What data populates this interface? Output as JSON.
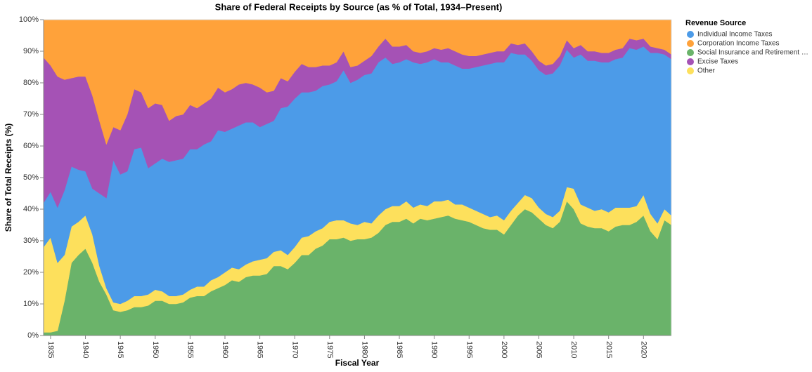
{
  "chart_data": {
    "type": "stacked_area",
    "title": "Share of Federal Receipts by Source (as % of Total, 1934–Present)",
    "x_label": "Fiscal Year",
    "y_label": "Share of Total Receipts (%)",
    "legend_title": "Revenue Source",
    "x": [
      1934,
      1935,
      1936,
      1937,
      1938,
      1939,
      1940,
      1941,
      1942,
      1943,
      1944,
      1945,
      1946,
      1947,
      1948,
      1949,
      1950,
      1951,
      1952,
      1953,
      1954,
      1955,
      1956,
      1957,
      1958,
      1959,
      1960,
      1961,
      1962,
      1963,
      1964,
      1965,
      1966,
      1967,
      1968,
      1969,
      1970,
      1971,
      1972,
      1973,
      1974,
      1975,
      1976,
      1977,
      1978,
      1979,
      1980,
      1981,
      1982,
      1983,
      1984,
      1985,
      1986,
      1987,
      1988,
      1989,
      1990,
      1991,
      1992,
      1993,
      1994,
      1995,
      1996,
      1997,
      1998,
      1999,
      2000,
      2001,
      2002,
      2003,
      2004,
      2005,
      2006,
      2007,
      2008,
      2009,
      2010,
      2011,
      2012,
      2013,
      2014,
      2015,
      2016,
      2017,
      2018,
      2019,
      2020,
      2021,
      2022,
      2023,
      2024
    ],
    "xlim": [
      1934,
      2024
    ],
    "xticks": [
      1935,
      1940,
      1945,
      1950,
      1955,
      1960,
      1965,
      1970,
      1975,
      1980,
      1985,
      1990,
      1995,
      2000,
      2005,
      2010,
      2015,
      2020
    ],
    "ylim": [
      0,
      100
    ],
    "yticks": [
      {
        "value": 0,
        "label": "0%"
      },
      {
        "value": 10,
        "label": "10%"
      },
      {
        "value": 20,
        "label": "20%"
      },
      {
        "value": 30,
        "label": "30%"
      },
      {
        "value": 40,
        "label": "40%"
      },
      {
        "value": 50,
        "label": "50%"
      },
      {
        "value": 60,
        "label": "60%"
      },
      {
        "value": 70,
        "label": "70%"
      },
      {
        "value": 80,
        "label": "80%"
      },
      {
        "value": 90,
        "label": "90%"
      },
      {
        "value": 100,
        "label": "100%"
      }
    ],
    "grid": true,
    "legend_position": "right",
    "stack_order": [
      2,
      4,
      0,
      3,
      1
    ],
    "series": [
      {
        "name": "Individual Income Taxes",
        "color": "#4c9be8",
        "values": [
          14,
          14.5,
          17.5,
          20.5,
          19,
          16.5,
          14,
          14.5,
          23,
          28.5,
          45,
          41,
          41,
          46.5,
          47,
          40,
          40,
          42,
          42.5,
          43,
          43,
          44.5,
          43.5,
          45,
          44,
          46.5,
          44.5,
          44,
          45.5,
          45,
          44,
          42,
          42.5,
          41.5,
          45,
          47,
          47,
          46,
          45.5,
          44.5,
          45,
          43.5,
          44,
          47.5,
          44.5,
          46,
          46.5,
          47.5,
          48.5,
          48,
          45,
          45.5,
          45,
          46,
          44.5,
          45.5,
          45,
          44,
          43.5,
          44,
          43,
          44,
          45.5,
          47,
          48.5,
          48.5,
          50,
          50,
          47,
          44.5,
          43.5,
          43.5,
          44,
          45.5,
          46,
          43.5,
          41.5,
          47.5,
          46.5,
          47.5,
          46.5,
          47.5,
          47,
          47.5,
          50.5,
          49.5,
          47,
          51,
          54,
          49,
          49.5
        ]
      },
      {
        "name": "Corporation Income Taxes",
        "color": "#ffa23a",
        "values": [
          12,
          14.5,
          18,
          19,
          18.5,
          18,
          18,
          24,
          32,
          39.5,
          34,
          35,
          30,
          22,
          23,
          28,
          26.5,
          27,
          32,
          30.5,
          30,
          27,
          28,
          26.5,
          25,
          21.5,
          23,
          22,
          20.5,
          20,
          20.5,
          21.5,
          23,
          22.5,
          18.5,
          19.5,
          16.5,
          14,
          15,
          15,
          14.5,
          14.5,
          13.5,
          10,
          15,
          14.5,
          13,
          11.5,
          8.5,
          6,
          8.5,
          8.5,
          8,
          10,
          10.5,
          10,
          9,
          9.5,
          9,
          10,
          11,
          11.5,
          11.5,
          11,
          10.5,
          10,
          10,
          7.5,
          8,
          7.5,
          10,
          13,
          14.5,
          14,
          11.5,
          6.5,
          9,
          8,
          10,
          10,
          10.5,
          10.5,
          9.5,
          9,
          6,
          6.5,
          6,
          8.5,
          9,
          9.5,
          11
        ]
      },
      {
        "name": "Social Insurance and Retirement …",
        "color": "#6ab36a",
        "values": [
          1,
          1,
          1.5,
          11,
          23,
          25.5,
          27.5,
          23,
          17,
          13,
          8,
          7.5,
          8,
          9,
          9,
          9.5,
          11,
          11,
          10,
          10,
          10.5,
          12,
          12.5,
          12.5,
          14,
          15,
          16,
          17.5,
          17,
          18.5,
          19,
          19,
          19.5,
          22,
          22,
          21,
          23,
          25.5,
          25.5,
          27.5,
          28.5,
          30.5,
          30.5,
          31,
          30,
          30.5,
          30.5,
          31,
          32.5,
          35,
          36,
          36,
          37,
          35.5,
          37,
          36.5,
          37,
          37.5,
          38,
          37,
          36.5,
          36,
          35,
          34,
          33.5,
          33.5,
          32,
          35,
          38,
          40,
          39,
          37,
          35,
          34,
          36,
          42.5,
          40,
          35.5,
          34.5,
          34,
          34,
          33,
          34.5,
          35,
          35,
          36,
          38,
          33,
          30.5,
          36.5,
          35
        ]
      },
      {
        "name": "Excise Taxes",
        "color": "#a552b5",
        "values": [
          46,
          40,
          41.5,
          35,
          28,
          29.5,
          30,
          29.5,
          23,
          17,
          10.5,
          14,
          18,
          19,
          17.5,
          19,
          19,
          17,
          13,
          14,
          14,
          14,
          13,
          13,
          13.5,
          13.5,
          12.5,
          12.5,
          13,
          12.5,
          12,
          12.5,
          10,
          9.5,
          9.5,
          8,
          8.5,
          9,
          8,
          7.5,
          6.5,
          6,
          6,
          6,
          5,
          4.5,
          4.5,
          5.5,
          5,
          6,
          5.5,
          5,
          4.5,
          3.5,
          3.5,
          3.5,
          3.5,
          4,
          4.5,
          4.5,
          4.5,
          4,
          3.5,
          3.5,
          3.5,
          3.5,
          3.5,
          3,
          3,
          3.5,
          3,
          3,
          3,
          3,
          3,
          3,
          3,
          3,
          3,
          3,
          3,
          3,
          3,
          3,
          3,
          3,
          2.5,
          2,
          1.5,
          1.5,
          1.5
        ]
      },
      {
        "name": "Other",
        "color": "#fde05c",
        "values": [
          27,
          30,
          21.5,
          14.5,
          11.5,
          10.5,
          10.5,
          9,
          5,
          2,
          2.5,
          2.5,
          3,
          3.5,
          3.5,
          3.5,
          3.5,
          3,
          2.5,
          2.5,
          2.5,
          2.5,
          3,
          3,
          3.5,
          3.5,
          4,
          4,
          4,
          4,
          4.5,
          5,
          5,
          4.5,
          5,
          4.5,
          5,
          5.5,
          6,
          5.5,
          5.5,
          5.5,
          6,
          5.5,
          5.5,
          4.5,
          5.5,
          4.5,
          5.5,
          5,
          5,
          5,
          5.5,
          5,
          4.5,
          4.5,
          5.5,
          5,
          5,
          4.5,
          5,
          4.5,
          4.5,
          4.5,
          4,
          4.5,
          4.5,
          4.5,
          4,
          4.5,
          4.5,
          3.5,
          3.5,
          3.5,
          3.5,
          4.5,
          6.5,
          6,
          6,
          5.5,
          6,
          6,
          6,
          5.5,
          5.5,
          5,
          6.5,
          5.5,
          5,
          3.5,
          3
        ]
      }
    ]
  }
}
